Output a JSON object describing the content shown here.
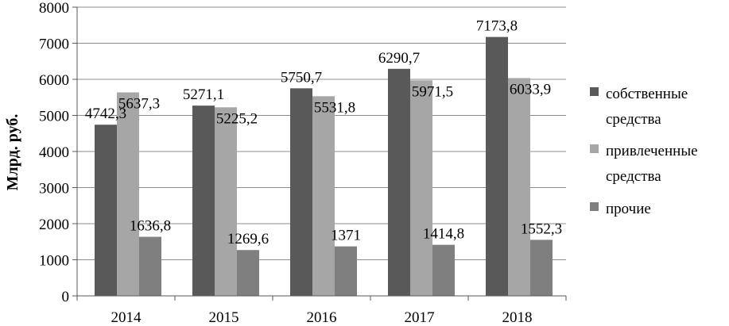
{
  "chart_data": {
    "type": "bar",
    "title": "",
    "xlabel": "",
    "ylabel": "Млрд. руб.",
    "ylim": [
      0,
      8000
    ],
    "yticks": [
      0,
      1000,
      2000,
      3000,
      4000,
      5000,
      6000,
      7000,
      8000
    ],
    "grid": true,
    "legend_position": "right",
    "categories": [
      "2014",
      "2015",
      "2016",
      "2017",
      "2018"
    ],
    "series": [
      {
        "name_lines": [
          "собственные",
          "средства"
        ],
        "color": "#595959",
        "values": [
          4742.3,
          5271.1,
          5750.7,
          6290.7,
          7173.8
        ],
        "labels": [
          "4742,3",
          "5271,1",
          "5750,7",
          "6290,7",
          "7173,8"
        ]
      },
      {
        "name_lines": [
          "привлеченные",
          "средства"
        ],
        "color": "#a6a6a6",
        "values": [
          5637.3,
          5225.2,
          5531.8,
          5971.5,
          6033.9
        ],
        "labels": [
          "5637,3",
          "5225,2",
          "5531,8",
          "5971,5",
          "6033,9"
        ]
      },
      {
        "name_lines": [
          "прочие"
        ],
        "color": "#7f7f7f",
        "values": [
          1636.8,
          1269.6,
          1371,
          1414.8,
          1552.3
        ],
        "labels": [
          "1636,8",
          "1269,6",
          "1371",
          "1414,8",
          "1552,3"
        ]
      }
    ]
  }
}
